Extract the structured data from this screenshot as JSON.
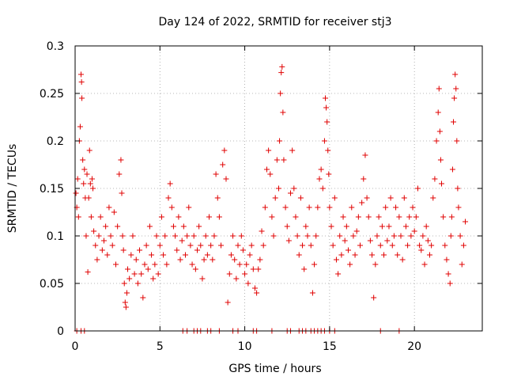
{
  "chart_data": {
    "type": "scatter",
    "title": "Day 124 of 2022, SRMTID for receiver stj3",
    "xlabel": "GPS time / hours",
    "ylabel": "SRMTID / TECUs",
    "xlim": [
      0,
      24
    ],
    "ylim": [
      0,
      0.3
    ],
    "xticks": [
      0,
      5,
      10,
      15,
      20
    ],
    "xtick_labels": [
      "0",
      "5",
      "10",
      "15",
      "20"
    ],
    "yticks": [
      0,
      0.05,
      0.1,
      0.15,
      0.2,
      0.25,
      0.3
    ],
    "ytick_labels": [
      "0",
      "0.05",
      "0.1",
      "0.15",
      "0.2",
      "0.25",
      "0.3"
    ],
    "grid": true,
    "marker": "plus",
    "color": "#e00000",
    "series": [
      {
        "name": "SRMTID",
        "points": [
          [
            0.05,
            0.145
          ],
          [
            0.1,
            0.13
          ],
          [
            0.15,
            0.16
          ],
          [
            0.2,
            0.12
          ],
          [
            0.25,
            0.2
          ],
          [
            0.3,
            0.215
          ],
          [
            0.35,
            0.27
          ],
          [
            0.38,
            0.262
          ],
          [
            0.4,
            0.245
          ],
          [
            0.45,
            0.18
          ],
          [
            0.5,
            0.155
          ],
          [
            0.55,
            0.17
          ],
          [
            0.6,
            0.14
          ],
          [
            0.65,
            0.1
          ],
          [
            0.7,
            0.165
          ],
          [
            0.75,
            0.062
          ],
          [
            0.8,
            0.14
          ],
          [
            0.85,
            0.19
          ],
          [
            0.9,
            0.155
          ],
          [
            0.95,
            0.12
          ],
          [
            1.0,
            0.16
          ],
          [
            1.05,
            0.15
          ],
          [
            1.1,
            0.105
          ],
          [
            1.2,
            0.09
          ],
          [
            1.3,
            0.075
          ],
          [
            1.4,
            0.1
          ],
          [
            1.5,
            0.12
          ],
          [
            1.6,
            0.085
          ],
          [
            1.7,
            0.095
          ],
          [
            1.8,
            0.11
          ],
          [
            1.9,
            0.08
          ],
          [
            2.0,
            0.13
          ],
          [
            2.1,
            0.1
          ],
          [
            2.2,
            0.09
          ],
          [
            2.3,
            0.125
          ],
          [
            2.4,
            0.07
          ],
          [
            2.5,
            0.11
          ],
          [
            2.6,
            0.165
          ],
          [
            2.7,
            0.18
          ],
          [
            2.75,
            0.145
          ],
          [
            2.8,
            0.1
          ],
          [
            2.85,
            0.085
          ],
          [
            2.9,
            0.05
          ],
          [
            2.95,
            0.03
          ],
          [
            3.0,
            0.025
          ],
          [
            3.05,
            0.04
          ],
          [
            3.1,
            0.065
          ],
          [
            3.2,
            0.055
          ],
          [
            3.3,
            0.08
          ],
          [
            3.4,
            0.1
          ],
          [
            3.5,
            0.06
          ],
          [
            3.6,
            0.075
          ],
          [
            3.7,
            0.05
          ],
          [
            3.8,
            0.085
          ],
          [
            3.9,
            0.06
          ],
          [
            4.0,
            0.035
          ],
          [
            4.1,
            0.07
          ],
          [
            4.2,
            0.09
          ],
          [
            4.3,
            0.065
          ],
          [
            4.4,
            0.11
          ],
          [
            4.5,
            0.08
          ],
          [
            4.6,
            0.055
          ],
          [
            4.7,
            0.07
          ],
          [
            4.8,
            0.1
          ],
          [
            4.9,
            0.06
          ],
          [
            5.0,
            0.09
          ],
          [
            5.1,
            0.12
          ],
          [
            5.2,
            0.08
          ],
          [
            5.3,
            0.1
          ],
          [
            5.4,
            0.07
          ],
          [
            5.5,
            0.14
          ],
          [
            5.6,
            0.155
          ],
          [
            5.7,
            0.13
          ],
          [
            5.8,
            0.11
          ],
          [
            5.9,
            0.1
          ],
          [
            6.0,
            0.085
          ],
          [
            6.1,
            0.12
          ],
          [
            6.2,
            0.075
          ],
          [
            6.3,
            0.095
          ],
          [
            6.4,
            0.11
          ],
          [
            6.5,
            0.08
          ],
          [
            6.6,
            0.1
          ],
          [
            6.7,
            0.13
          ],
          [
            6.8,
            0.09
          ],
          [
            6.9,
            0.07
          ],
          [
            7.0,
            0.1
          ],
          [
            7.1,
            0.065
          ],
          [
            7.2,
            0.085
          ],
          [
            7.3,
            0.11
          ],
          [
            7.4,
            0.09
          ],
          [
            7.5,
            0.055
          ],
          [
            7.6,
            0.075
          ],
          [
            7.7,
            0.1
          ],
          [
            7.8,
            0.08
          ],
          [
            7.9,
            0.12
          ],
          [
            8.0,
            0.09
          ],
          [
            8.1,
            0.075
          ],
          [
            8.2,
            0.1
          ],
          [
            8.3,
            0.165
          ],
          [
            8.4,
            0.14
          ],
          [
            8.5,
            0.12
          ],
          [
            8.6,
            0.09
          ],
          [
            8.7,
            0.175
          ],
          [
            8.8,
            0.19
          ],
          [
            8.9,
            0.16
          ],
          [
            9.0,
            0.03
          ],
          [
            9.1,
            0.06
          ],
          [
            9.2,
            0.08
          ],
          [
            9.3,
            0.1
          ],
          [
            9.4,
            0.075
          ],
          [
            9.5,
            0.055
          ],
          [
            9.6,
            0.09
          ],
          [
            9.7,
            0.07
          ],
          [
            9.8,
            0.1
          ],
          [
            9.9,
            0.085
          ],
          [
            10.0,
            0.06
          ],
          [
            10.1,
            0.07
          ],
          [
            10.2,
            0.05
          ],
          [
            10.3,
            0.08
          ],
          [
            10.4,
            0.09
          ],
          [
            10.5,
            0.065
          ],
          [
            10.6,
            0.045
          ],
          [
            10.7,
            0.04
          ],
          [
            10.8,
            0.065
          ],
          [
            10.9,
            0.075
          ],
          [
            11.0,
            0.105
          ],
          [
            11.1,
            0.09
          ],
          [
            11.2,
            0.13
          ],
          [
            11.3,
            0.17
          ],
          [
            11.4,
            0.19
          ],
          [
            11.5,
            0.165
          ],
          [
            11.6,
            0.12
          ],
          [
            11.7,
            0.1
          ],
          [
            11.8,
            0.14
          ],
          [
            11.9,
            0.18
          ],
          [
            12.0,
            0.15
          ],
          [
            12.05,
            0.2
          ],
          [
            12.1,
            0.25
          ],
          [
            12.15,
            0.272
          ],
          [
            12.2,
            0.278
          ],
          [
            12.25,
            0.23
          ],
          [
            12.3,
            0.18
          ],
          [
            12.4,
            0.13
          ],
          [
            12.5,
            0.11
          ],
          [
            12.6,
            0.095
          ],
          [
            12.7,
            0.145
          ],
          [
            12.8,
            0.19
          ],
          [
            12.9,
            0.15
          ],
          [
            13.0,
            0.12
          ],
          [
            13.1,
            0.1
          ],
          [
            13.2,
            0.08
          ],
          [
            13.3,
            0.14
          ],
          [
            13.4,
            0.09
          ],
          [
            13.5,
            0.065
          ],
          [
            13.6,
            0.11
          ],
          [
            13.7,
            0.1
          ],
          [
            13.8,
            0.13
          ],
          [
            13.9,
            0.09
          ],
          [
            14.0,
            0.04
          ],
          [
            14.1,
            0.07
          ],
          [
            14.2,
            0.1
          ],
          [
            14.3,
            0.13
          ],
          [
            14.4,
            0.16
          ],
          [
            14.5,
            0.17
          ],
          [
            14.6,
            0.15
          ],
          [
            14.7,
            0.2
          ],
          [
            14.75,
            0.245
          ],
          [
            14.8,
            0.235
          ],
          [
            14.85,
            0.22
          ],
          [
            14.9,
            0.19
          ],
          [
            14.95,
            0.165
          ],
          [
            15.0,
            0.13
          ],
          [
            15.1,
            0.11
          ],
          [
            15.2,
            0.09
          ],
          [
            15.3,
            0.14
          ],
          [
            15.4,
            0.075
          ],
          [
            15.5,
            0.06
          ],
          [
            15.6,
            0.1
          ],
          [
            15.7,
            0.08
          ],
          [
            15.8,
            0.12
          ],
          [
            15.9,
            0.095
          ],
          [
            16.0,
            0.11
          ],
          [
            16.1,
            0.085
          ],
          [
            16.2,
            0.07
          ],
          [
            16.3,
            0.13
          ],
          [
            16.4,
            0.1
          ],
          [
            16.5,
            0.08
          ],
          [
            16.6,
            0.105
          ],
          [
            16.7,
            0.12
          ],
          [
            16.8,
            0.09
          ],
          [
            16.9,
            0.135
          ],
          [
            17.0,
            0.16
          ],
          [
            17.1,
            0.185
          ],
          [
            17.2,
            0.14
          ],
          [
            17.3,
            0.12
          ],
          [
            17.4,
            0.095
          ],
          [
            17.5,
            0.08
          ],
          [
            17.6,
            0.035
          ],
          [
            17.7,
            0.07
          ],
          [
            17.8,
            0.1
          ],
          [
            17.9,
            0.12
          ],
          [
            18.0,
            0.09
          ],
          [
            18.1,
            0.11
          ],
          [
            18.2,
            0.08
          ],
          [
            18.3,
            0.13
          ],
          [
            18.4,
            0.095
          ],
          [
            18.5,
            0.11
          ],
          [
            18.6,
            0.14
          ],
          [
            18.7,
            0.09
          ],
          [
            18.8,
            0.1
          ],
          [
            18.9,
            0.13
          ],
          [
            19.0,
            0.08
          ],
          [
            19.1,
            0.12
          ],
          [
            19.2,
            0.1
          ],
          [
            19.3,
            0.075
          ],
          [
            19.4,
            0.14
          ],
          [
            19.5,
            0.11
          ],
          [
            19.6,
            0.09
          ],
          [
            19.7,
            0.12
          ],
          [
            19.8,
            0.1
          ],
          [
            19.9,
            0.13
          ],
          [
            20.0,
            0.105
          ],
          [
            20.1,
            0.12
          ],
          [
            20.2,
            0.15
          ],
          [
            20.3,
            0.09
          ],
          [
            20.4,
            0.085
          ],
          [
            20.5,
            0.1
          ],
          [
            20.6,
            0.07
          ],
          [
            20.7,
            0.11
          ],
          [
            20.8,
            0.095
          ],
          [
            20.9,
            0.08
          ],
          [
            21.0,
            0.09
          ],
          [
            21.1,
            0.14
          ],
          [
            21.2,
            0.16
          ],
          [
            21.3,
            0.2
          ],
          [
            21.4,
            0.23
          ],
          [
            21.45,
            0.255
          ],
          [
            21.5,
            0.21
          ],
          [
            21.55,
            0.18
          ],
          [
            21.6,
            0.155
          ],
          [
            21.7,
            0.12
          ],
          [
            21.8,
            0.09
          ],
          [
            21.9,
            0.075
          ],
          [
            22.0,
            0.06
          ],
          [
            22.1,
            0.05
          ],
          [
            22.15,
            0.1
          ],
          [
            22.2,
            0.12
          ],
          [
            22.25,
            0.17
          ],
          [
            22.3,
            0.22
          ],
          [
            22.35,
            0.245
          ],
          [
            22.4,
            0.27
          ],
          [
            22.45,
            0.255
          ],
          [
            22.5,
            0.2
          ],
          [
            22.55,
            0.15
          ],
          [
            22.6,
            0.13
          ],
          [
            22.7,
            0.1
          ],
          [
            22.8,
            0.07
          ],
          [
            22.9,
            0.09
          ],
          [
            23.0,
            0.115
          ],
          [
            0.1,
            0.0
          ],
          [
            0.35,
            0.0
          ],
          [
            0.55,
            0.0
          ],
          [
            6.35,
            0.0
          ],
          [
            6.6,
            0.0
          ],
          [
            7.0,
            0.0
          ],
          [
            7.2,
            0.0
          ],
          [
            7.4,
            0.0
          ],
          [
            7.8,
            0.0
          ],
          [
            8.0,
            0.0
          ],
          [
            8.5,
            0.0
          ],
          [
            9.3,
            0.0
          ],
          [
            9.6,
            0.0
          ],
          [
            10.5,
            0.0
          ],
          [
            10.7,
            0.0
          ],
          [
            11.6,
            0.0
          ],
          [
            12.5,
            0.0
          ],
          [
            12.7,
            0.0
          ],
          [
            13.2,
            0.0
          ],
          [
            13.4,
            0.0
          ],
          [
            13.6,
            0.0
          ],
          [
            13.9,
            0.0
          ],
          [
            14.1,
            0.0
          ],
          [
            14.3,
            0.0
          ],
          [
            14.5,
            0.0
          ],
          [
            14.7,
            0.0
          ],
          [
            15.0,
            0.0
          ],
          [
            15.3,
            0.0
          ],
          [
            18.0,
            0.0
          ],
          [
            19.1,
            0.0
          ]
        ]
      }
    ]
  }
}
